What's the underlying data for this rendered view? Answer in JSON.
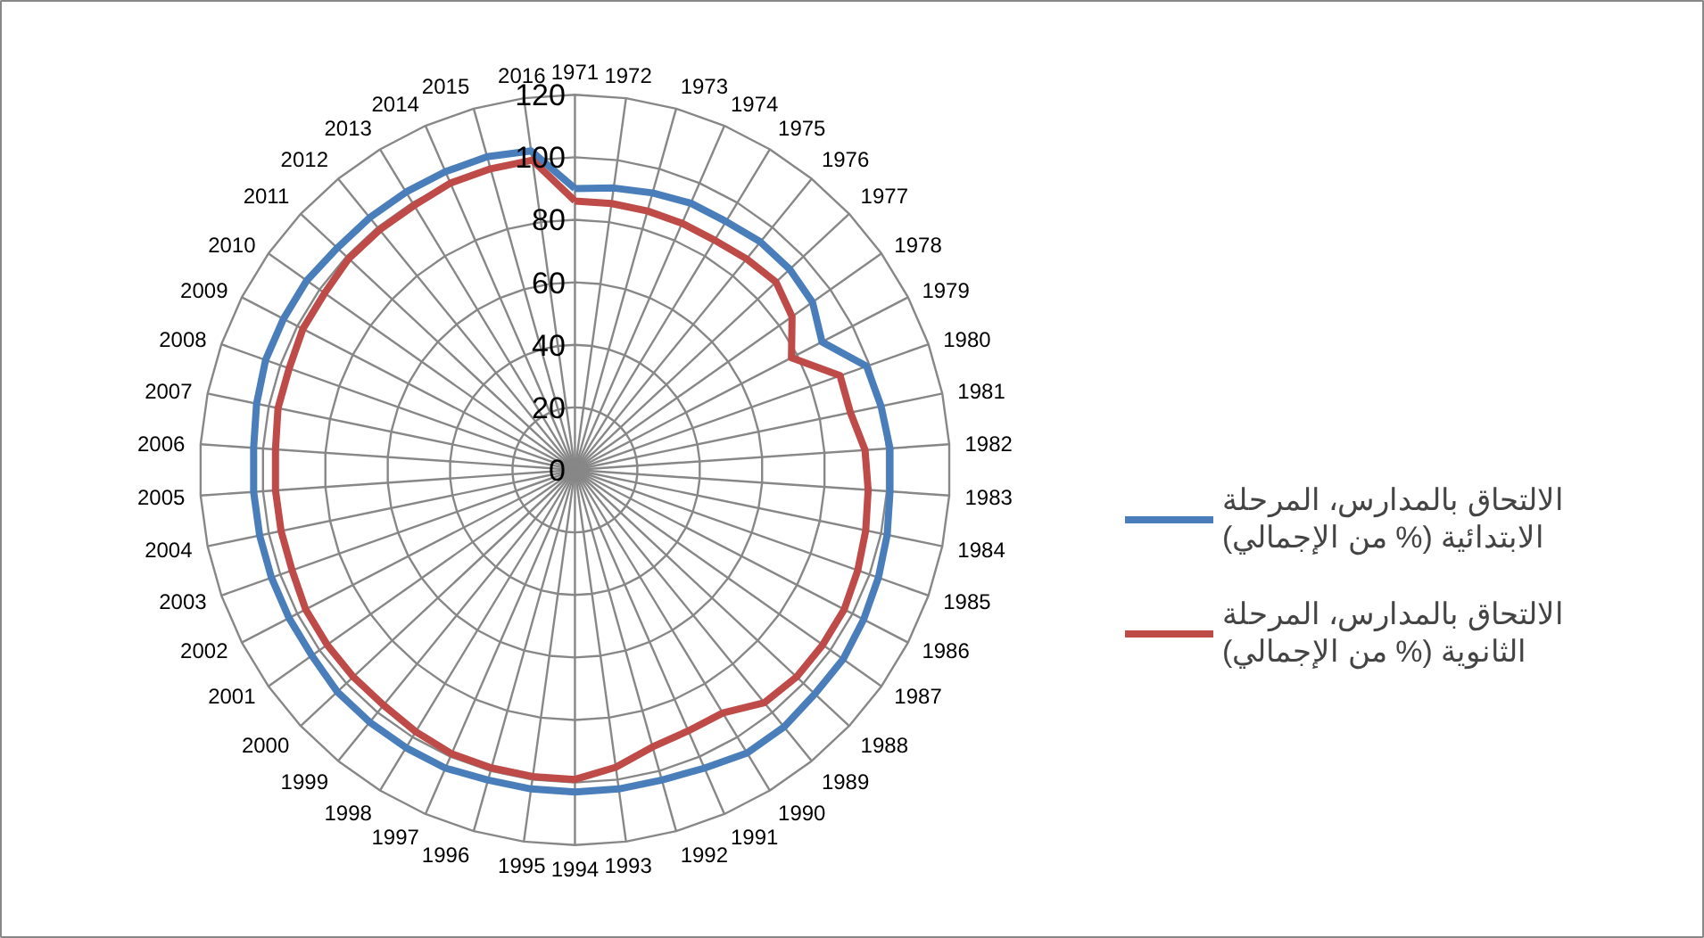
{
  "chart_data": {
    "type": "radar",
    "categories": [
      "1971",
      "1972",
      "1973",
      "1974",
      "1975",
      "1976",
      "1977",
      "1978",
      "1979",
      "1980",
      "1981",
      "1982",
      "1983",
      "1984",
      "1985",
      "1986",
      "1987",
      "1988",
      "1989",
      "1990",
      "1991",
      "1992",
      "1993",
      "1994",
      "1995",
      "1996",
      "1997",
      "1998",
      "1999",
      "2000",
      "2001",
      "2002",
      "2003",
      "2004",
      "2005",
      "2006",
      "2007",
      "2008",
      "2009",
      "2010",
      "2011",
      "2012",
      "2013",
      "2014",
      "2015",
      "2016"
    ],
    "series": [
      {
        "name": "الالتحاق بالمدارس، المرحلة\nالابتدائية (% من الإجمالي)",
        "color": "#4a7ebb",
        "values": [
          90,
          91,
          92,
          93,
          93,
          94,
          94,
          93,
          89,
          99,
          100,
          101,
          101,
          102,
          103,
          104,
          105,
          105,
          106,
          106,
          104,
          103,
          103,
          103,
          103,
          103,
          104,
          104,
          104,
          104,
          103,
          103,
          103,
          103,
          103,
          103,
          104,
          105,
          105,
          105,
          104,
          104,
          104,
          104,
          104,
          103
        ]
      },
      {
        "name": "الالتحاق بالمدارس، المرحلة\nالثانوية (% من الإجمالي)",
        "color": "#be4b48",
        "values": [
          86,
          86,
          86,
          86,
          86,
          87,
          88,
          85,
          78,
          90,
          90,
          93,
          94,
          95,
          96,
          97,
          97,
          97,
          96,
          91,
          91,
          92,
          96,
          99,
          99,
          99,
          99,
          98,
          97,
          97,
          97,
          97,
          96,
          96,
          96,
          96,
          97,
          97,
          98,
          98,
          99,
          99,
          99,
          100,
          100,
          100
        ]
      }
    ],
    "ylim": [
      0,
      120
    ],
    "yticks": [
      0,
      20,
      40,
      60,
      80,
      100,
      120
    ],
    "grid": true,
    "legend": "right",
    "line_style": "solid",
    "marker": "none"
  }
}
